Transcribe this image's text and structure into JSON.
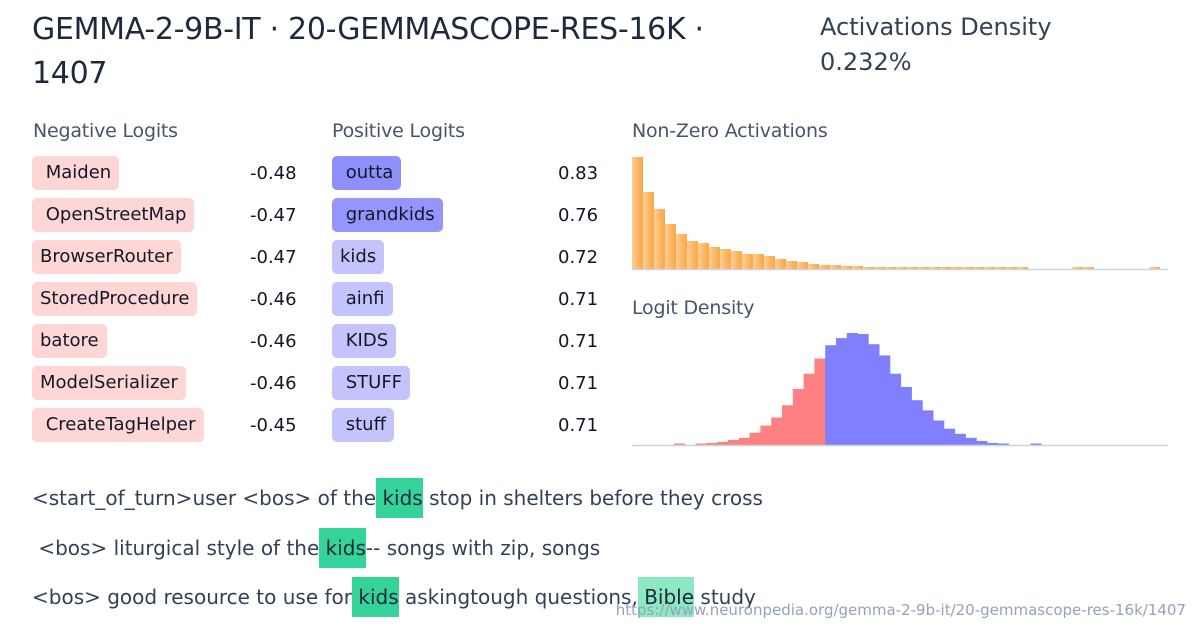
{
  "header": {
    "title_line1": "GEMMA-2-9B-IT · 20-GEMMASCOPE-RES-16K ·",
    "title_line2": "1407",
    "density_label": "Activations Density",
    "density_value": "0.232%"
  },
  "negative_logits": {
    "label": "Negative Logits",
    "items": [
      {
        "token": " Maiden",
        "value": "-0.48"
      },
      {
        "token": " OpenStreetMap",
        "value": "-0.47"
      },
      {
        "token": "BrowserRouter",
        "value": "-0.47"
      },
      {
        "token": "StoredProcedure",
        "value": "-0.46"
      },
      {
        "token": "batore",
        "value": "-0.46"
      },
      {
        "token": "ModelSerializer",
        "value": "-0.46"
      },
      {
        "token": " CreateTagHelper",
        "value": "-0.45"
      }
    ]
  },
  "positive_logits": {
    "label": "Positive Logits",
    "items": [
      {
        "token": " outta",
        "value": "0.83",
        "color": "#8f8ffc"
      },
      {
        "token": " grandkids",
        "value": "0.76",
        "color": "#9595fc"
      },
      {
        "token": "kids",
        "value": "0.72",
        "color": "#c4c4fd"
      },
      {
        "token": " ainfi",
        "value": "0.71",
        "color": "#c4c4fd"
      },
      {
        "token": " KIDS",
        "value": "0.71",
        "color": "#c4c4fd"
      },
      {
        "token": " STUFF",
        "value": "0.71",
        "color": "#c4c4fd"
      },
      {
        "token": " stuff",
        "value": "0.71",
        "color": "#c4c4fd"
      }
    ]
  },
  "charts": {
    "activations_label": "Non-Zero Activations",
    "logit_density_label": "Logit Density"
  },
  "chart_data": [
    {
      "type": "bar",
      "title": "Non-Zero Activations",
      "xlabel": "",
      "ylabel": "",
      "grid": false,
      "colors": [
        "#fdd19a",
        "#fdb869"
      ],
      "values": [
        112,
        77,
        60,
        45,
        35,
        28,
        26,
        22,
        20,
        18,
        15,
        15,
        13,
        10,
        8,
        7,
        5,
        4,
        4,
        3,
        3,
        2,
        2,
        2,
        2,
        1.5,
        1.5,
        1.5,
        1.2,
        1.2,
        1,
        1,
        1,
        1,
        0.8,
        0.8,
        0,
        0,
        0,
        0,
        1,
        1,
        0,
        0,
        0,
        0,
        0,
        1,
        0,
        0,
        0,
        1,
        0,
        0,
        0,
        0,
        0,
        0,
        0,
        0
      ]
    },
    {
      "type": "bar",
      "title": "Logit Density",
      "xlabel": "",
      "ylabel": "",
      "grid": false,
      "negative_color": "#ff8080",
      "positive_color": "#8080ff",
      "negative_values": [
        0,
        0,
        0,
        0,
        0,
        0.5,
        0,
        1,
        2,
        3,
        5,
        7,
        12,
        19,
        27,
        39,
        55,
        70,
        85
      ],
      "positive_values": [
        98,
        105,
        110,
        109,
        99,
        88,
        70,
        57,
        44,
        34,
        24,
        16,
        11,
        7,
        4,
        2,
        1,
        0,
        0,
        1
      ]
    }
  ],
  "examples": [
    {
      "tokens": [
        {
          "t": "<start_of_turn>user <bos> of the",
          "h": 0
        },
        {
          "t": " kids",
          "h": 1
        },
        {
          "t": " stop in shelters before they cross",
          "h": 0
        }
      ]
    },
    {
      "tokens": [
        {
          "t": " <bos> liturgical style of the",
          "h": 0
        },
        {
          "t": " kids",
          "h": 1
        },
        {
          "t": "-- songs with zip, songs",
          "h": 0
        }
      ]
    },
    {
      "tokens": [
        {
          "t": "<bos> good resource to use for",
          "h": 0
        },
        {
          "t": " kids",
          "h": 1
        },
        {
          "t": " askingtough questions,",
          "h": 0
        },
        {
          "t": " Bible",
          "h": 2
        },
        {
          "t": " study",
          "h": 0
        }
      ]
    }
  ],
  "footer": {
    "url": "https://www.neuronpedia.org/gemma-2-9b-it/20-gemmascope-res-16k/1407"
  }
}
